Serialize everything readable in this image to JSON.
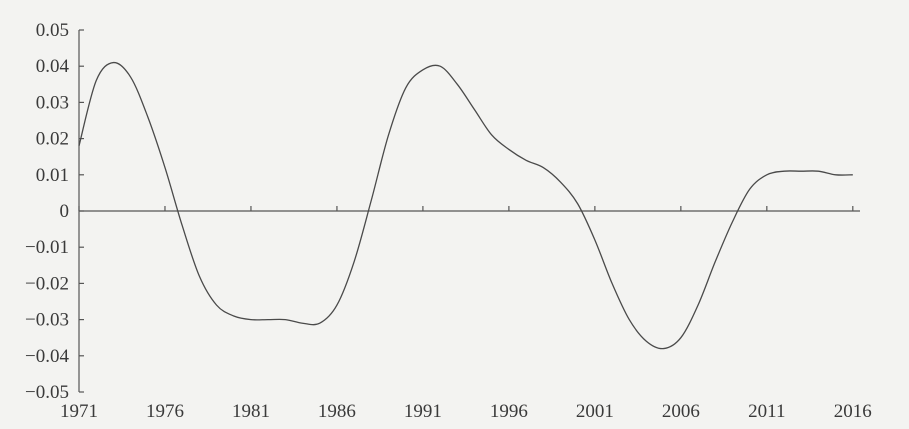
{
  "chart_data": {
    "type": "line",
    "title": "",
    "xlabel": "",
    "ylabel": "",
    "xlim": [
      1971,
      2017
    ],
    "ylim": [
      -0.05,
      0.05
    ],
    "x_ticks": [
      1971,
      1976,
      1981,
      1986,
      1991,
      1996,
      2001,
      2006,
      2011,
      2016
    ],
    "x_tick_labels": [
      "1971",
      "1976",
      "1981",
      "1986",
      "1991",
      "1996",
      "2001",
      "2006",
      "2011",
      "2016"
    ],
    "y_ticks": [
      0.05,
      0.04,
      0.03,
      0.02,
      0.01,
      0,
      -0.01,
      -0.02,
      -0.03,
      -0.04,
      -0.05
    ],
    "y_tick_labels": [
      "0.05",
      "0.04",
      "0.03",
      "0.02",
      "0.01",
      "0",
      "-0.01",
      "-0.02",
      "-0.03",
      "-0.04",
      "-0.05"
    ],
    "grid": false,
    "series": [
      {
        "color": "#4a4a4a",
        "x": [
          1971,
          1972,
          1973,
          1974,
          1975,
          1976,
          1977,
          1978,
          1979,
          1980,
          1981,
          1982,
          1983,
          1984,
          1985,
          1986,
          1987,
          1988,
          1989,
          1990,
          1991,
          1992,
          1993,
          1994,
          1995,
          1996,
          1997,
          1998,
          1999,
          2000,
          2001,
          2002,
          2003,
          2004,
          2005,
          2006,
          2007,
          2008,
          2009,
          2010,
          2011,
          2012,
          2013,
          2014,
          2015,
          2016
        ],
        "y": [
          0.018,
          0.036,
          0.041,
          0.037,
          0.026,
          0.012,
          -0.004,
          -0.018,
          -0.026,
          -0.029,
          -0.03,
          -0.03,
          -0.03,
          -0.031,
          -0.031,
          -0.026,
          -0.014,
          0.003,
          0.021,
          0.034,
          0.039,
          0.04,
          0.035,
          0.028,
          0.021,
          0.017,
          0.014,
          0.012,
          0.008,
          0.002,
          -0.008,
          -0.02,
          -0.03,
          -0.036,
          -0.038,
          -0.035,
          -0.026,
          -0.014,
          -0.003,
          0.006,
          0.01,
          0.011,
          0.011,
          0.011,
          0.01,
          0.01
        ]
      }
    ]
  }
}
